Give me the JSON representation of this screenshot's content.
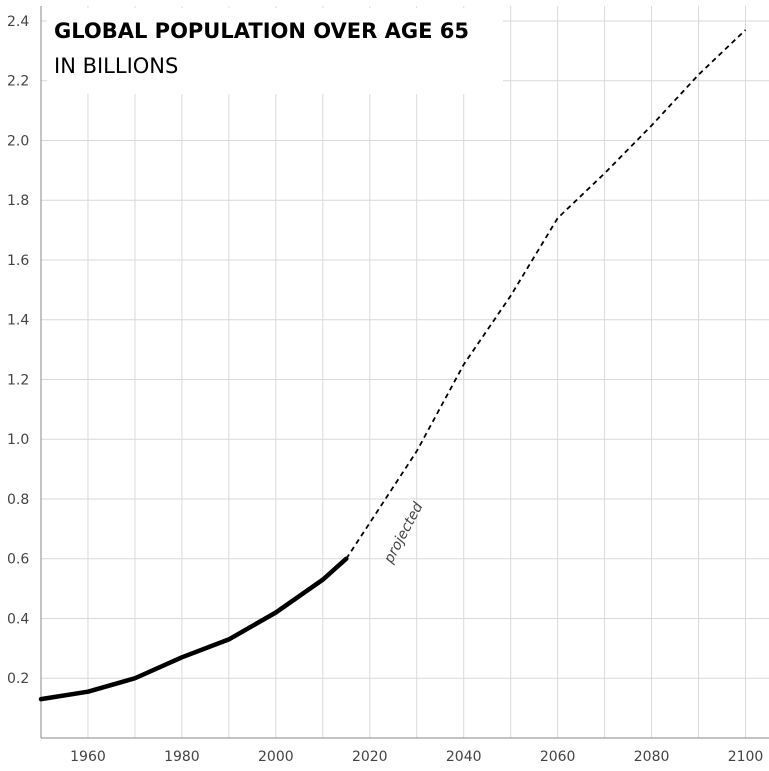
{
  "chart_data": {
    "type": "line",
    "title": "GLOBAL POPULATION OVER AGE 65",
    "subtitle": "IN BILLIONS",
    "xlim": [
      1950,
      2105
    ],
    "ylim": [
      0.0,
      2.45
    ],
    "x_ticks": [
      "1960",
      "1980",
      "2000",
      "2020",
      "2040",
      "2060",
      "2080",
      "2100"
    ],
    "y_ticks": [
      "0.2",
      "0.4",
      "0.6",
      "0.8",
      "1.0",
      "1.2",
      "1.4",
      "1.6",
      "1.8",
      "2.0",
      "2.2",
      "2.4"
    ],
    "grid": true,
    "annotation": "projected",
    "series": [
      {
        "style": "solid",
        "x": [
          1950,
          1960,
          1970,
          1980,
          1990,
          2000,
          2010,
          2015
        ],
        "y": [
          0.13,
          0.155,
          0.2,
          0.27,
          0.33,
          0.42,
          0.53,
          0.6
        ]
      },
      {
        "style": "dashed",
        "x": [
          2015,
          2020,
          2030,
          2040,
          2050,
          2060,
          2070,
          2080,
          2090,
          2100
        ],
        "y": [
          0.6,
          0.72,
          0.96,
          1.25,
          1.48,
          1.74,
          1.89,
          2.05,
          2.22,
          2.37
        ]
      }
    ],
    "colors": {
      "line": "#000000",
      "grid": "#d9d9d9",
      "text": "#444444"
    }
  }
}
